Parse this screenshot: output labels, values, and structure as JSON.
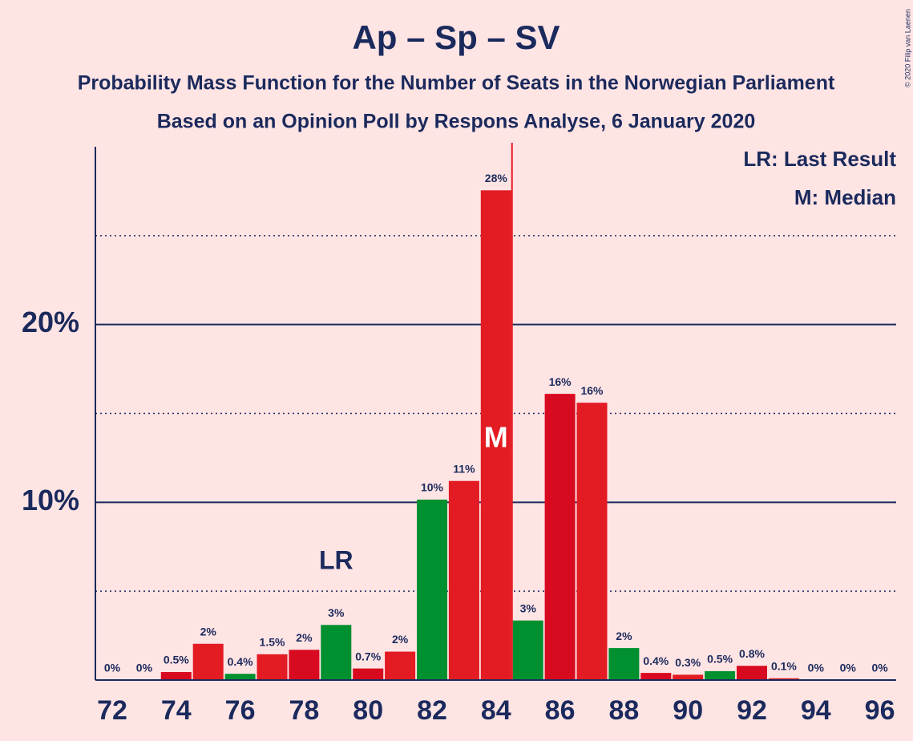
{
  "chart_data": {
    "type": "bar",
    "title": "Ap – Sp – SV",
    "subtitle": "Probability Mass Function for the Number of Seats in the Norwegian Parliament",
    "subtitle2": "Based on an Opinion Poll by Respons Analyse, 6 January 2020",
    "copyright": "© 2020 Filip van Laenen",
    "legend": [
      "LR: Last Result",
      "M: Median"
    ],
    "categories": [
      "72",
      null,
      "74",
      null,
      "76",
      null,
      "78",
      null,
      "80",
      null,
      "82",
      null,
      "84",
      null,
      "86",
      null,
      "88",
      null,
      "90",
      null,
      "92",
      null,
      "94",
      null,
      "96"
    ],
    "values": [
      0,
      0,
      0.45,
      2.04,
      0.35,
      1.45,
      1.7,
      3.1,
      0.65,
      1.6,
      10.15,
      11.2,
      27.55,
      3.35,
      16.1,
      15.6,
      1.8,
      0.4,
      0.3,
      0.5,
      0.8,
      0.1,
      0,
      0,
      0
    ],
    "value_labels": [
      "0%",
      "0%",
      "0.5%",
      "2%",
      "0.4%",
      "1.5%",
      "2%",
      "3%",
      "0.7%",
      "2%",
      "10%",
      "11%",
      "28%",
      "3%",
      "16%",
      "16%",
      "2%",
      "0.4%",
      "0.3%",
      "0.5%",
      "0.8%",
      "0.1%",
      "0%",
      "0%",
      "0%"
    ],
    "colors": [
      "#e31b23",
      "#d80a1f",
      "#d80a1f",
      "#e31b23",
      "#00902f",
      "#e31b23",
      "#d80a1f",
      "#00902f",
      "#d80a1f",
      "#e31b23",
      "#00902f",
      "#e31b23",
      "#e31b23",
      "#00902f",
      "#d80a1f",
      "#e31b23",
      "#00902f",
      "#d80a1f",
      "#e31b23",
      "#00902f",
      "#d80a1f",
      "#e31b23",
      "#00902f",
      "#d80a1f",
      "#e31b23"
    ],
    "last_result": {
      "index": 7,
      "label": "LR"
    },
    "median": {
      "index": 12,
      "label": "M"
    },
    "majority": 84.5,
    "ylim": [
      0,
      30
    ],
    "yticks": [
      {
        "value": 10,
        "label": "10%"
      },
      {
        "value": 20,
        "label": "20%"
      }
    ],
    "minor_grid": [
      5,
      15,
      25
    ],
    "grid": true
  }
}
